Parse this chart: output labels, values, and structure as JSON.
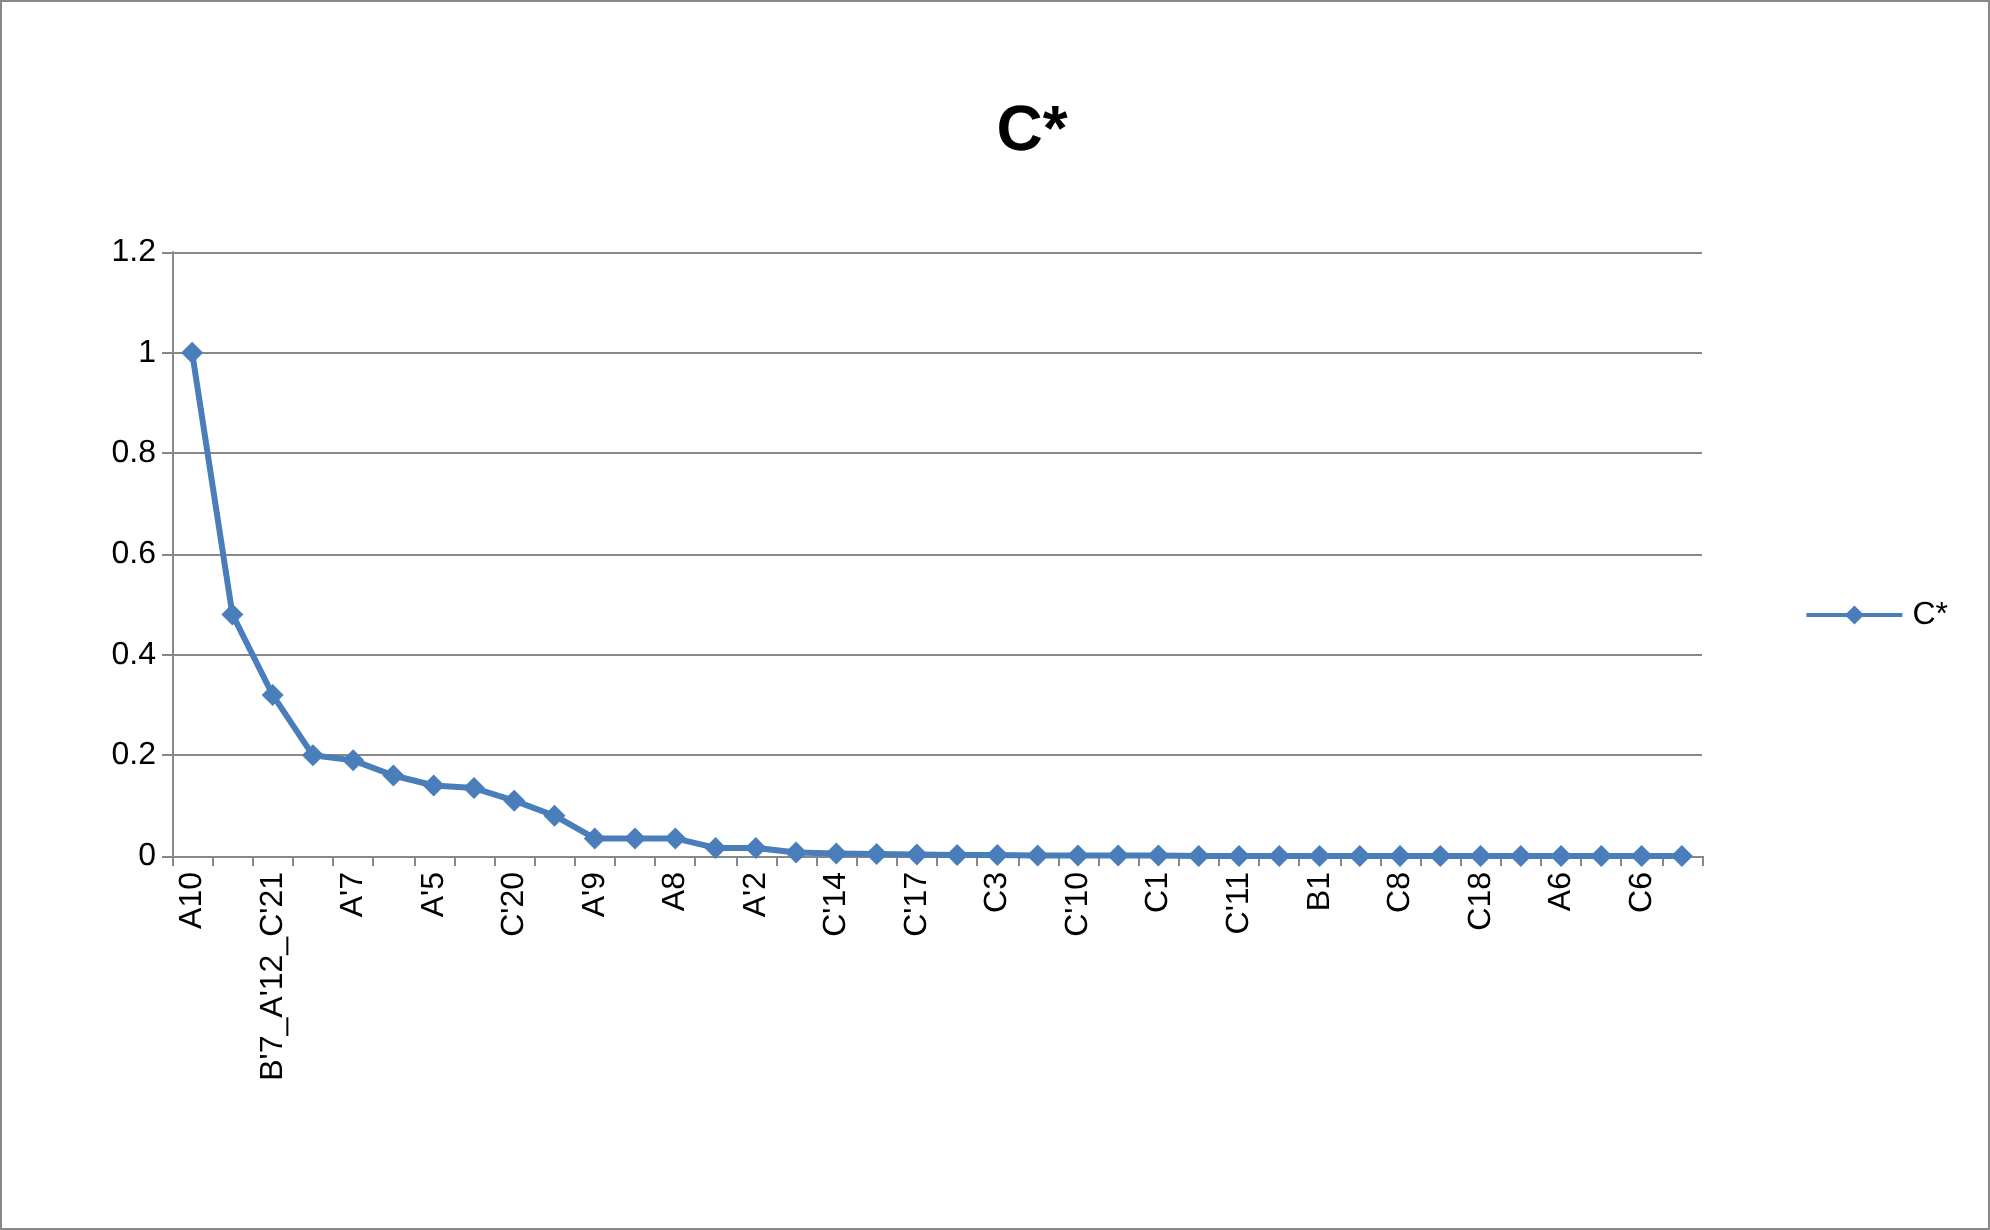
{
  "chart_data": {
    "type": "line",
    "title": "C*",
    "categories": [
      "A10",
      null,
      "B'7_A'12_C'21",
      null,
      "A'7",
      null,
      "A'5",
      null,
      "C'20",
      null,
      "A'9",
      null,
      "A8",
      null,
      "A'2",
      null,
      "C'14",
      null,
      "C'17",
      null,
      "C3",
      null,
      "C'10",
      null,
      "C1",
      null,
      "C'11",
      null,
      "B1",
      null,
      "C8",
      null,
      "C18",
      null,
      "A6",
      null,
      "C6",
      null
    ],
    "series": [
      {
        "name": "C*",
        "color": "#4a7ebb",
        "values": [
          1,
          0.48,
          0.32,
          0.2,
          0.19,
          0.16,
          0.14,
          0.135,
          0.11,
          0.08,
          0.035,
          0.035,
          0.035,
          0.016,
          0.016,
          0.007,
          0.005,
          0.004,
          0.003,
          0.002,
          0.002,
          0.001,
          0.001,
          0.001,
          0.001,
          0,
          0,
          0,
          0,
          0,
          0,
          0,
          0,
          0,
          0,
          0,
          0,
          0
        ]
      }
    ],
    "ylim": [
      0,
      1.2
    ],
    "yticks": [
      0,
      0.2,
      0.4,
      0.6,
      0.8,
      1,
      1.2
    ],
    "grid": "y",
    "legend": "right",
    "marker": "diamond"
  }
}
